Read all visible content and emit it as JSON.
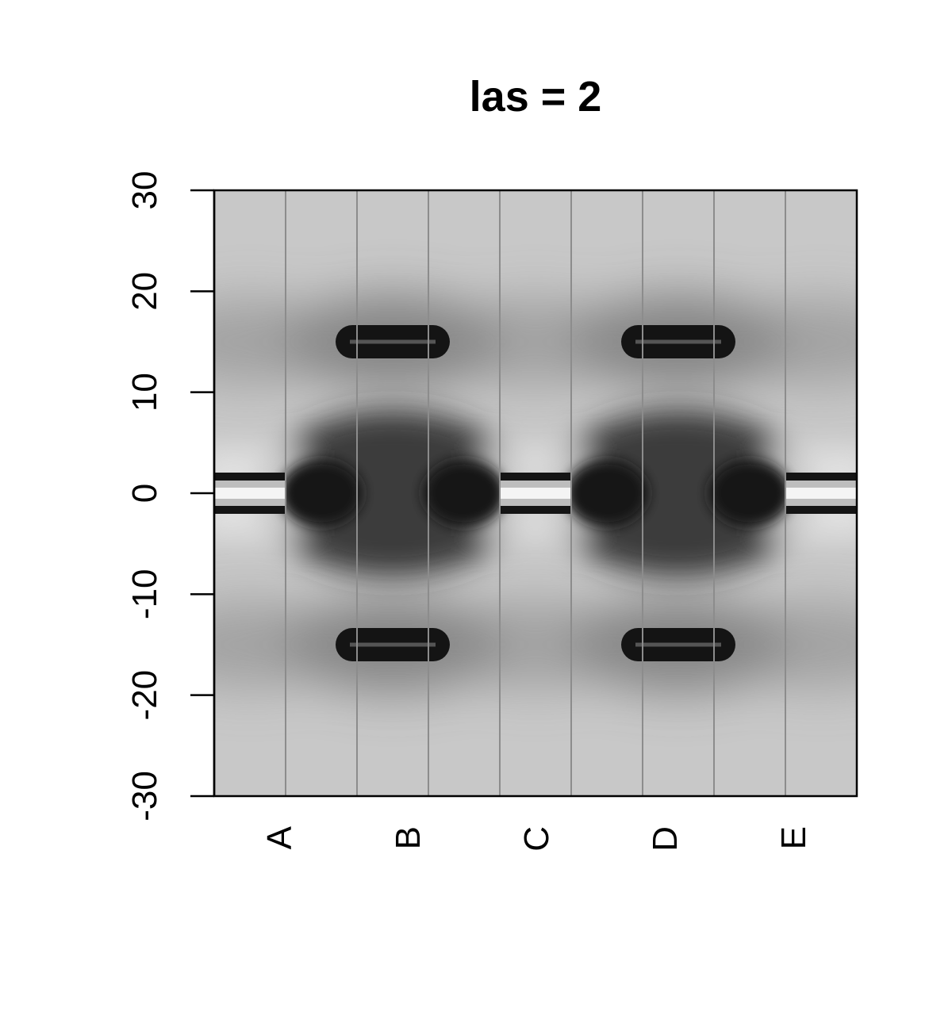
{
  "chart_data": {
    "type": "heatmap",
    "title": "las = 2",
    "xlabel": "",
    "ylabel": "",
    "colormap": "grayscale",
    "x_categories": [
      "A",
      "B",
      "C",
      "D",
      "E"
    ],
    "x_range": [
      0,
      9
    ],
    "ylim": [
      -30,
      30
    ],
    "y_ticks": [
      "30",
      "20",
      "10",
      "0",
      "-10",
      "-20",
      "-30"
    ],
    "y_tick_values": [
      30,
      20,
      10,
      0,
      -10,
      -20,
      -30
    ],
    "column_boundaries": [
      1,
      2,
      3,
      4,
      5,
      6,
      7,
      8
    ],
    "axis_label_orientation": "perpendicular to axis (las = 2)",
    "bars": [
      {
        "x_start": 1.7,
        "x_end": 3.3,
        "y": 15
      },
      {
        "x_start": 5.7,
        "x_end": 7.3,
        "y": 15
      },
      {
        "x_start": 1.7,
        "x_end": 3.3,
        "y": -15
      },
      {
        "x_start": 5.7,
        "x_end": 7.3,
        "y": -15
      }
    ],
    "center_bands": [
      {
        "x_start": 0,
        "x_end": 1,
        "y": 0
      },
      {
        "x_start": 4,
        "x_end": 5,
        "y": 0
      },
      {
        "x_start": 8,
        "x_end": 9,
        "y": 0
      }
    ],
    "dark_blobs": [
      {
        "x": 1.5,
        "y": 0
      },
      {
        "x": 3.5,
        "y": 0
      },
      {
        "x": 5.5,
        "y": 0
      },
      {
        "x": 7.5,
        "y": 0
      }
    ],
    "dark_regions": [
      {
        "x": 2.5,
        "y": 0
      },
      {
        "x": 6.5,
        "y": 0
      }
    ],
    "colors": {
      "background": "#c8c8c8",
      "dark": "#141414",
      "light": "#f4f4f4",
      "column_line": "#8c8c8c"
    }
  }
}
